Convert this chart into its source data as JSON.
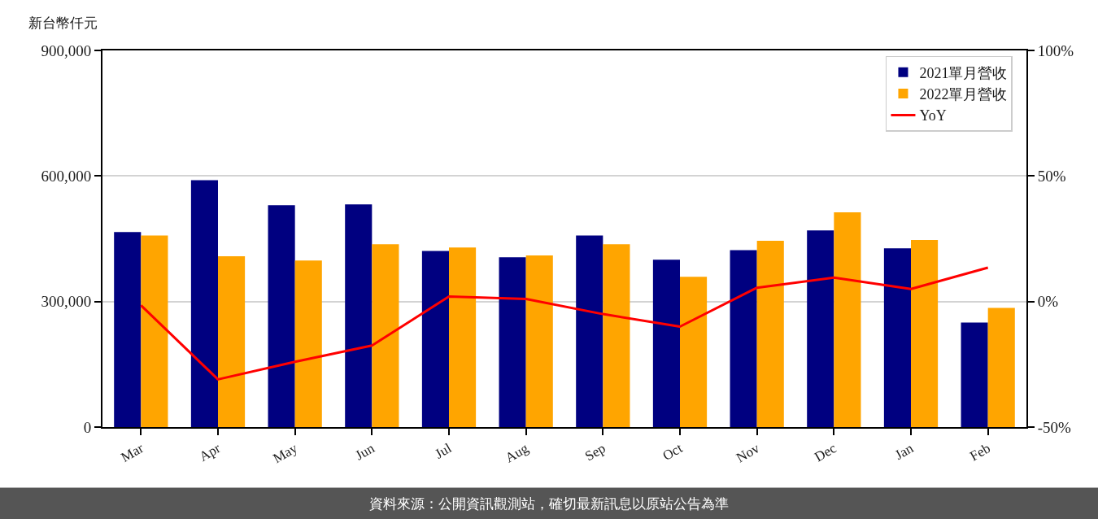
{
  "chart_data": {
    "type": "bar",
    "ylabel": "新台幣仟元",
    "annotations": [
      "資料來源：公開資訊觀測站，確切最新訊息以原站公告為準"
    ],
    "categories": [
      "Mar",
      "Apr",
      "May",
      "Jun",
      "Jul",
      "Aug",
      "Sep",
      "Oct",
      "Nov",
      "Dec",
      "Jan",
      "Feb"
    ],
    "series": [
      {
        "name": "2021單月營收",
        "color": "#000080",
        "values": [
          466000,
          590000,
          530000,
          532000,
          421000,
          406000,
          458000,
          400000,
          423000,
          470000,
          427000,
          250000
        ]
      },
      {
        "name": "2022單月營收",
        "color": "#ffa500",
        "values": [
          458000,
          408000,
          398000,
          437000,
          429000,
          410000,
          437000,
          359000,
          445000,
          513000,
          447000,
          285000
        ]
      },
      {
        "name": "YoY",
        "type": "line",
        "axis": "y2",
        "color": "#ff0000",
        "values": [
          -1.5,
          -31,
          -24,
          -17.5,
          2,
          1,
          -5,
          -10,
          5.5,
          9.5,
          5,
          13.5
        ]
      }
    ],
    "ylim": [
      0,
      900000
    ],
    "yticks": [
      0,
      {
        "value": 300000,
        "label": "300,000"
      },
      {
        "value": 600000,
        "label": "600,000"
      },
      {
        "value": 900000,
        "label": "900,000"
      }
    ],
    "y2lim": [
      -50,
      100
    ],
    "y2ticks": [
      {
        "value": -50,
        "label": "-50%"
      },
      {
        "value": 0,
        "label": "0%"
      },
      {
        "value": 50,
        "label": "50%"
      },
      {
        "value": 100,
        "label": "100%"
      }
    ],
    "grid": "y",
    "legend": "top right",
    "line_style": "solid"
  }
}
